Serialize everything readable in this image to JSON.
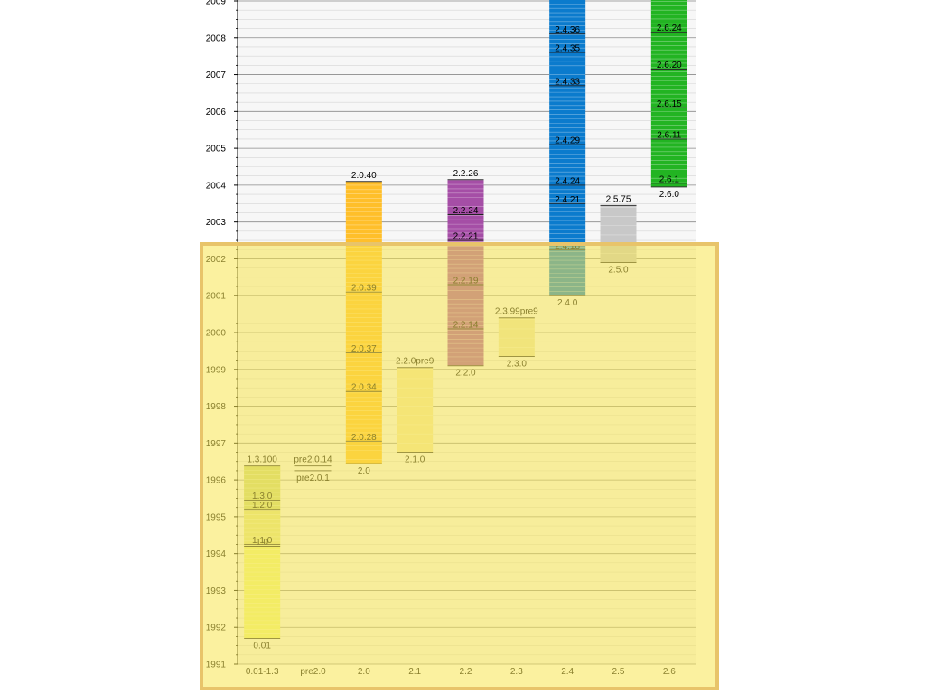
{
  "chart_data": {
    "type": "bar",
    "categories": [
      "0.01-1.3",
      "pre2.0",
      "2.0",
      "2.1",
      "2.2",
      "2.3",
      "2.4",
      "2.5",
      "2.6"
    ],
    "ylim": [
      1991,
      2009
    ],
    "yticks": [
      "1991",
      "1992",
      "1993",
      "1994",
      "1995",
      "1996",
      "1997",
      "1998",
      "1999",
      "2000",
      "2001",
      "2002",
      "2003",
      "2004",
      "2005",
      "2006",
      "2007",
      "2008",
      "2009"
    ],
    "grid": true,
    "series": [
      {
        "category": "0.01-1.3",
        "start": 1991.7,
        "end": 1996.38,
        "color": "#eef37f",
        "start_label": "0.01",
        "end_label": "1.3.100",
        "segments": [
          {
            "from": 1994.2,
            "to": 1995.2,
            "color": "#dfe38a"
          },
          {
            "from": 1995.2,
            "to": 1995.45,
            "color": "#c9d67a"
          },
          {
            "from": 1995.45,
            "to": 1996.38,
            "color": "#c9d67a"
          }
        ],
        "releases": [
          {
            "label": "1.0",
            "y": 1994.2
          },
          {
            "label": "1.1.0",
            "y": 1994.25
          },
          {
            "label": "1.2.0",
            "y": 1995.2
          },
          {
            "label": "1.3.0",
            "y": 1995.45
          }
        ]
      },
      {
        "category": "pre2.0",
        "start": 1996.25,
        "end": 1996.38,
        "color": "#f6f6f6",
        "start_label": "pre2.0.1",
        "end_label": "pre2.0.14",
        "segments": [],
        "releases": []
      },
      {
        "category": "2.0",
        "start": 1996.44,
        "end": 2004.1,
        "color": "#ffbf2a",
        "start_label": "2.0",
        "end_label": "2.0.40",
        "segments": [],
        "releases": [
          {
            "label": "2.0.28",
            "y": 1997.05
          },
          {
            "label": "2.0.34",
            "y": 1998.4
          },
          {
            "label": "2.0.37",
            "y": 1999.45
          },
          {
            "label": "2.0.39",
            "y": 2001.1
          }
        ]
      },
      {
        "category": "2.1",
        "start": 1996.75,
        "end": 1999.05,
        "color": "#f1e4a4",
        "start_label": "2.1.0",
        "end_label": "2.2.0pre9",
        "segments": [],
        "releases": []
      },
      {
        "category": "2.2",
        "start": 1999.1,
        "end": 2004.15,
        "color": "#a54ea6",
        "start_label": "2.2.0",
        "end_label": "2.2.26",
        "segments": [],
        "releases": [
          {
            "label": "2.2.14",
            "y": 2000.1
          },
          {
            "label": "2.2.19",
            "y": 2001.3
          },
          {
            "label": "2.2.21",
            "y": 2002.5
          },
          {
            "label": "2.2.24",
            "y": 2003.2
          }
        ]
      },
      {
        "category": "2.3",
        "start": 1999.35,
        "end": 2000.4,
        "color": "#e8e2b0",
        "start_label": "2.3.0",
        "end_label": "2.3.99pre9",
        "segments": [],
        "releases": []
      },
      {
        "category": "2.4",
        "start": 2001.0,
        "end": 2009.2,
        "color": "#0b7bcd",
        "start_label": "2.4.0",
        "end_label": "",
        "segments": [],
        "releases": [
          {
            "label": "2.4.18",
            "y": 2002.25
          },
          {
            "label": "2.4.21",
            "y": 2003.5
          },
          {
            "label": "2.4.24",
            "y": 2004.0
          },
          {
            "label": "2.4.29",
            "y": 2005.1
          },
          {
            "label": "2.4.33",
            "y": 2006.7
          },
          {
            "label": "2.4.35",
            "y": 2007.6
          },
          {
            "label": "2.4.36",
            "y": 2008.1
          }
        ]
      },
      {
        "category": "2.5",
        "start": 2001.9,
        "end": 2003.45,
        "color": "#c8c8c8",
        "start_label": "2.5.0",
        "end_label": "2.5.75",
        "segments": [],
        "releases": []
      },
      {
        "category": "2.6",
        "start": 2003.95,
        "end": 2009.2,
        "color": "#22b422",
        "start_label": "2.6.0",
        "end_label": "",
        "segments": [],
        "releases": [
          {
            "label": "2.6.1",
            "y": 2004.05
          },
          {
            "label": "2.6.11",
            "y": 2005.25
          },
          {
            "label": "2.6.15",
            "y": 2006.1
          },
          {
            "label": "2.6.20",
            "y": 2007.15
          },
          {
            "label": "2.6.24",
            "y": 2008.15
          }
        ]
      }
    ]
  }
}
